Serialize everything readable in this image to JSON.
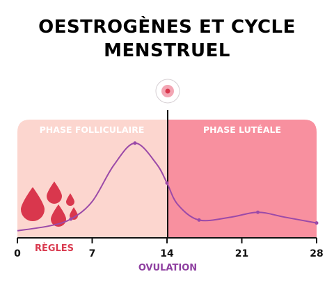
{
  "title": {
    "line1": "OESTROGÈNES ET CYCLE",
    "line2": "MENSTRUEL"
  },
  "phases": {
    "follicular": {
      "label": "PHASE FOLLICULAIRE",
      "color": "#fcd6cf"
    },
    "luteal": {
      "label": "PHASE LUTÉALE",
      "color": "#f8909f"
    }
  },
  "annotations": {
    "regles": "RÈGLES",
    "ovulation": "OVULATION"
  },
  "colors": {
    "curve": "#9b4aa8",
    "drop": "#d9374d",
    "egg": "#f3a6b4"
  },
  "icons": {
    "ovulation": "ovum-icon",
    "menstruation": "blood-drops-icon"
  },
  "chart_data": {
    "type": "line",
    "title": "OESTROGÈNES ET CYCLE MENSTRUEL",
    "xlabel": "",
    "ylabel": "",
    "xticks": [
      0,
      7,
      14,
      21,
      28
    ],
    "xlim": [
      0,
      28
    ],
    "ylim": [
      0,
      1
    ],
    "grid": false,
    "x": [
      0,
      3,
      5,
      7,
      9,
      11,
      13,
      14,
      15,
      17,
      20,
      22.5,
      25,
      28
    ],
    "y": [
      0.03,
      0.08,
      0.15,
      0.33,
      0.7,
      0.93,
      0.72,
      0.52,
      0.3,
      0.14,
      0.17,
      0.22,
      0.17,
      0.11
    ],
    "markers_at": [
      5,
      11,
      14,
      17,
      22.5,
      28
    ],
    "regions": [
      {
        "label": "PHASE FOLLICULAIRE",
        "from": 0,
        "to": 14
      },
      {
        "label": "PHASE LUTÉALE",
        "from": 14,
        "to": 28
      }
    ]
  }
}
